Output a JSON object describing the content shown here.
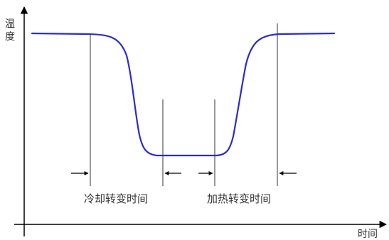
{
  "diagram": {
    "y_axis_label_line1": "温",
    "y_axis_label_line2": "度",
    "x_axis_label": "时间",
    "cooling_label": "冷却转变时间",
    "heating_label": "加热转变时间",
    "colors": {
      "curve": "#2b2bd0",
      "axis": "#000000",
      "guide": "#333333",
      "text": "#333333"
    }
  }
}
